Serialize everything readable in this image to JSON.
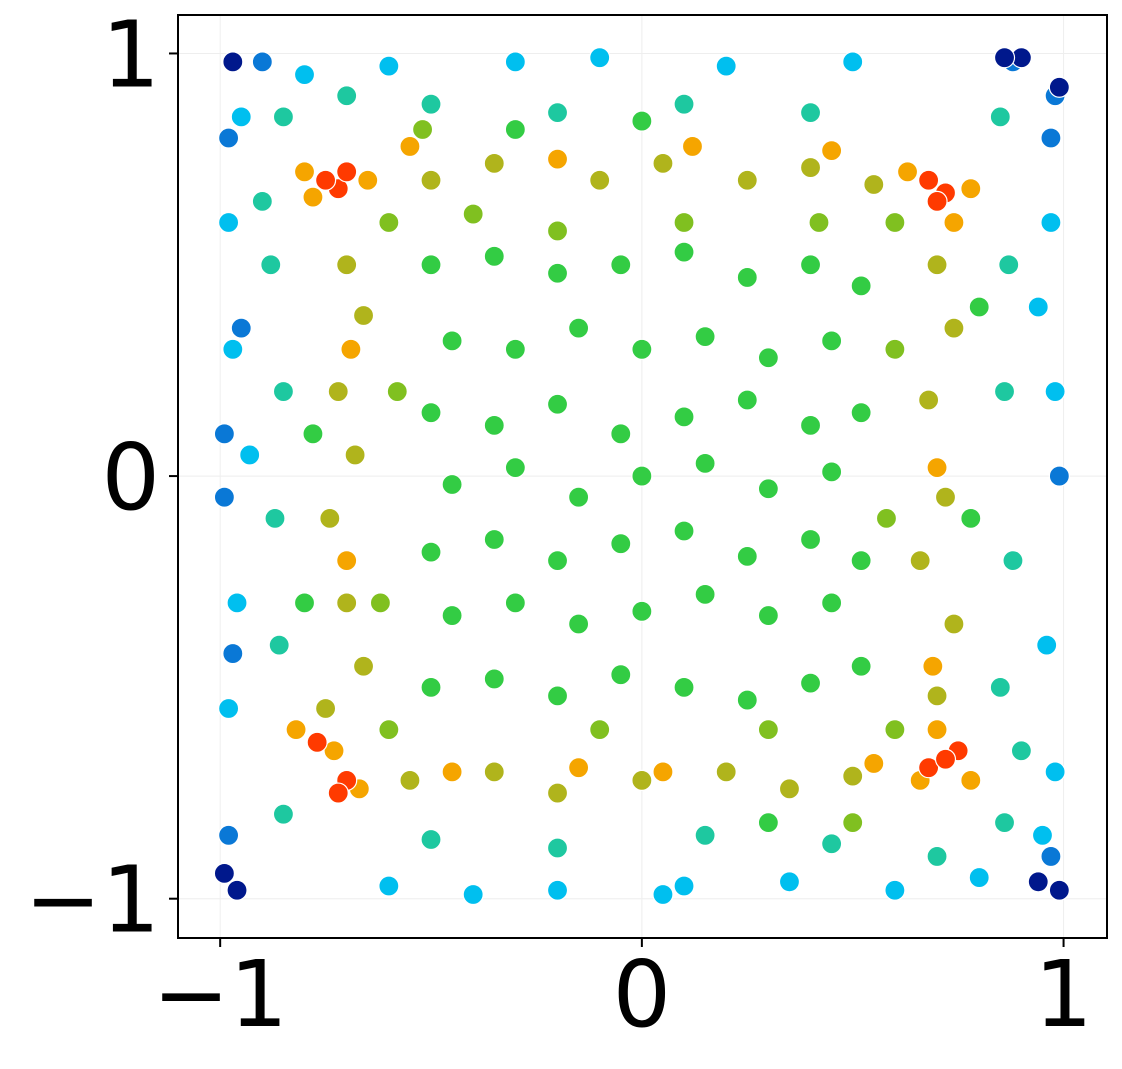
{
  "chart_data": {
    "type": "scatter",
    "xlim": [
      -1.1,
      1.103
    ],
    "ylim": [
      -1.093,
      1.091
    ],
    "xticks": [
      {
        "value": -1,
        "label": "−1"
      },
      0,
      1
    ],
    "yticks": [
      {
        "value": -1,
        "label": "−1"
      },
      0,
      1
    ],
    "grid": true,
    "series": [
      {
        "color": "#00bfef",
        "x": [
          -0.98,
          -0.97,
          -0.96,
          -0.98,
          0.97,
          0.98,
          0.96,
          0.98,
          -0.6,
          -0.3,
          0.2,
          0.5,
          -0.6,
          -0.2,
          0.1,
          0.6,
          -0.8,
          0.8,
          -0.95,
          0.95,
          -0.4,
          0.35,
          -0.1,
          0.05,
          -0.93,
          0.94
        ],
        "y": [
          0.6,
          0.3,
          -0.3,
          -0.55,
          0.6,
          0.2,
          -0.4,
          -0.7,
          0.97,
          0.98,
          0.97,
          0.98,
          -0.97,
          -0.98,
          -0.97,
          -0.98,
          0.95,
          -0.95,
          0.85,
          -0.85,
          -0.99,
          -0.96,
          0.99,
          -0.99,
          0.05,
          0.4
        ]
      },
      {
        "color": "#0a78d6",
        "x": [
          -0.99,
          -0.99,
          -0.98,
          -0.98,
          0.99,
          0.98,
          0.97,
          0.97,
          -0.9,
          0.88,
          -0.95,
          -0.97
        ],
        "y": [
          0.1,
          -0.05,
          0.8,
          -0.85,
          0.0,
          0.9,
          0.8,
          -0.9,
          0.98,
          0.98,
          0.35,
          -0.42
        ]
      },
      {
        "color": "#00188c",
        "x": [
          -0.97,
          -0.99,
          -0.96,
          0.9,
          0.99,
          0.99,
          0.94,
          0.86
        ],
        "y": [
          0.98,
          -0.94,
          -0.98,
          0.99,
          0.92,
          -0.98,
          -0.96,
          0.99
        ]
      },
      {
        "color": "#1ec8a0",
        "x": [
          -0.85,
          -0.88,
          -0.85,
          -0.87,
          -0.86,
          -0.85,
          0.85,
          0.87,
          0.86,
          0.88,
          0.85,
          0.86,
          -0.5,
          -0.2,
          0.1,
          0.4,
          -0.5,
          -0.2,
          0.15,
          0.45,
          -0.9,
          0.9,
          -0.7,
          0.7
        ],
        "y": [
          0.85,
          0.5,
          0.2,
          -0.1,
          -0.4,
          -0.8,
          0.85,
          0.5,
          0.2,
          -0.2,
          -0.5,
          -0.82,
          0.88,
          0.86,
          0.88,
          0.86,
          -0.86,
          -0.88,
          -0.85,
          -0.87,
          0.65,
          -0.65,
          0.9,
          -0.9
        ]
      },
      {
        "color": "#33cc44",
        "x": [
          -0.5,
          -0.35,
          -0.2,
          -0.05,
          0.1,
          0.25,
          0.4,
          0.52,
          -0.45,
          -0.3,
          -0.15,
          0.0,
          0.15,
          0.3,
          0.45,
          -0.5,
          -0.35,
          -0.2,
          -0.05,
          0.1,
          0.25,
          0.4,
          0.52,
          -0.45,
          -0.3,
          -0.15,
          0.0,
          0.15,
          0.3,
          0.45,
          -0.5,
          -0.35,
          -0.2,
          -0.05,
          0.1,
          0.25,
          0.4,
          0.52,
          -0.45,
          -0.3,
          -0.15,
          0.0,
          0.15,
          0.3,
          0.45,
          -0.5,
          -0.35,
          -0.2,
          -0.05,
          0.1,
          0.25,
          0.4,
          0.52,
          -0.78,
          0.78,
          -0.8,
          0.8,
          -0.3,
          0.3,
          0.0
        ],
        "y": [
          0.5,
          0.52,
          0.48,
          0.5,
          0.53,
          0.47,
          0.5,
          0.45,
          0.32,
          0.3,
          0.35,
          0.3,
          0.33,
          0.28,
          0.32,
          0.15,
          0.12,
          0.17,
          0.1,
          0.14,
          0.18,
          0.12,
          0.15,
          -0.02,
          0.02,
          -0.05,
          0.0,
          0.03,
          -0.03,
          0.01,
          -0.18,
          -0.15,
          -0.2,
          -0.16,
          -0.13,
          -0.19,
          -0.15,
          -0.2,
          -0.33,
          -0.3,
          -0.35,
          -0.32,
          -0.28,
          -0.33,
          -0.3,
          -0.5,
          -0.48,
          -0.52,
          -0.47,
          -0.5,
          -0.53,
          -0.49,
          -0.45,
          0.1,
          -0.1,
          -0.3,
          0.4,
          0.82,
          -0.82,
          0.84
        ]
      },
      {
        "color": "#80c020",
        "x": [
          -0.6,
          0.6,
          -0.6,
          0.6,
          -0.58,
          0.58,
          -0.2,
          0.3,
          -0.4,
          0.1,
          -0.62,
          0.6,
          -0.1,
          0.42,
          -0.52,
          0.5
        ],
        "y": [
          0.6,
          0.6,
          -0.6,
          -0.6,
          0.2,
          -0.1,
          0.58,
          -0.6,
          0.62,
          0.6,
          -0.3,
          0.3,
          -0.6,
          0.6,
          0.82,
          -0.82
        ]
      },
      {
        "color": "#b0b41c",
        "x": [
          -0.7,
          -0.66,
          -0.72,
          -0.68,
          -0.74,
          -0.7,
          -0.66,
          -0.75,
          0.7,
          0.74,
          0.68,
          0.72,
          0.66,
          0.74,
          0.7,
          -0.5,
          -0.35,
          -0.1,
          0.05,
          0.25,
          0.4,
          0.55,
          -0.55,
          -0.35,
          -0.2,
          0.0,
          0.2,
          0.35,
          0.5
        ],
        "y": [
          0.5,
          0.38,
          0.2,
          0.05,
          -0.1,
          -0.3,
          -0.45,
          -0.55,
          0.5,
          0.35,
          0.18,
          -0.05,
          -0.2,
          -0.35,
          -0.52,
          0.7,
          0.74,
          0.7,
          0.74,
          0.7,
          0.73,
          0.69,
          -0.72,
          -0.7,
          -0.75,
          -0.72,
          -0.7,
          -0.74,
          -0.71
        ]
      },
      {
        "color": "#f5a500",
        "x": [
          -0.8,
          -0.65,
          -0.78,
          0.63,
          0.78,
          0.74,
          -0.82,
          -0.73,
          -0.67,
          0.7,
          0.66,
          0.78,
          0.12,
          -0.2,
          -0.55,
          0.45,
          -0.15,
          0.05,
          -0.45,
          0.55,
          0.69,
          0.7,
          -0.69,
          -0.7
        ],
        "y": [
          0.72,
          0.7,
          0.66,
          0.72,
          0.68,
          0.6,
          -0.6,
          -0.65,
          -0.74,
          -0.6,
          -0.72,
          -0.72,
          0.78,
          0.75,
          0.78,
          0.77,
          -0.69,
          -0.7,
          -0.7,
          -0.68,
          -0.45,
          0.02,
          0.3,
          -0.2
        ]
      },
      {
        "color": "#ff3a00",
        "x": [
          -0.72,
          -0.75,
          -0.7,
          0.68,
          0.72,
          0.7,
          -0.77,
          -0.7,
          -0.72,
          0.68,
          0.75,
          0.72
        ],
        "y": [
          0.68,
          0.7,
          0.72,
          0.7,
          0.67,
          0.65,
          -0.63,
          -0.72,
          -0.75,
          -0.69,
          -0.65,
          -0.67
        ]
      }
    ]
  }
}
